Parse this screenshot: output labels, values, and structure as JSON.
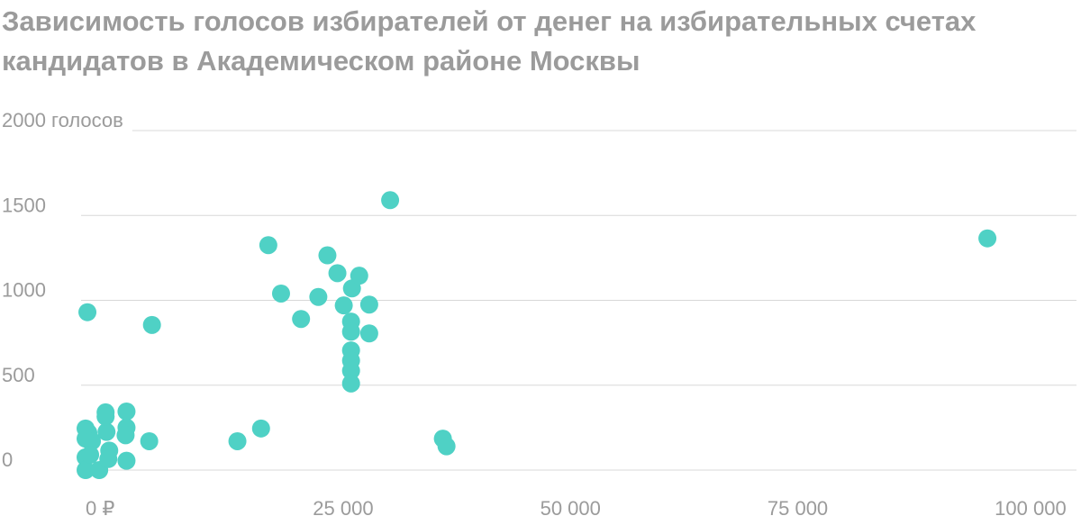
{
  "chart_data": {
    "type": "scatter",
    "title": "Зависимость голосов избирателей от денег на избирательных счетах кандидатов в Академическом районе Москвы",
    "color": "#4fd1c5",
    "x": [
      0,
      0,
      200,
      0,
      0,
      300,
      700,
      500,
      1500,
      2200,
      2300,
      2200,
      2600,
      2500,
      4500,
      4500,
      4400,
      4500,
      7000,
      7300,
      16700,
      19300,
      20100,
      21500,
      23700,
      25600,
      26600,
      27700,
      28400,
      29300,
      30100,
      31200,
      31200,
      29200,
      29200,
      29200,
      29200,
      29200,
      29200,
      33500,
      39300,
      39700,
      99200
    ],
    "y": [
      245,
      185,
      930,
      75,
      0,
      220,
      170,
      90,
      0,
      340,
      225,
      315,
      115,
      65,
      345,
      250,
      205,
      55,
      170,
      855,
      170,
      245,
      1325,
      1040,
      890,
      1020,
      1265,
      1160,
      970,
      1070,
      1145,
      975,
      805,
      875,
      815,
      705,
      645,
      585,
      510,
      1590,
      185,
      140,
      1365
    ],
    "xlim": [
      -200,
      109000
    ],
    "ylim": [
      0,
      2000
    ],
    "xticks": [
      {
        "value": 0,
        "label": "0 ₽"
      },
      {
        "value": 25000,
        "label": "25 000"
      },
      {
        "value": 50000,
        "label": "50 000"
      },
      {
        "value": 75000,
        "label": "75 000"
      },
      {
        "value": 100000,
        "label": "100 000"
      }
    ],
    "yticks": [
      0,
      500,
      1000,
      1500,
      {
        "value": 2000,
        "label": "2000 голосов"
      }
    ],
    "grid": true
  }
}
